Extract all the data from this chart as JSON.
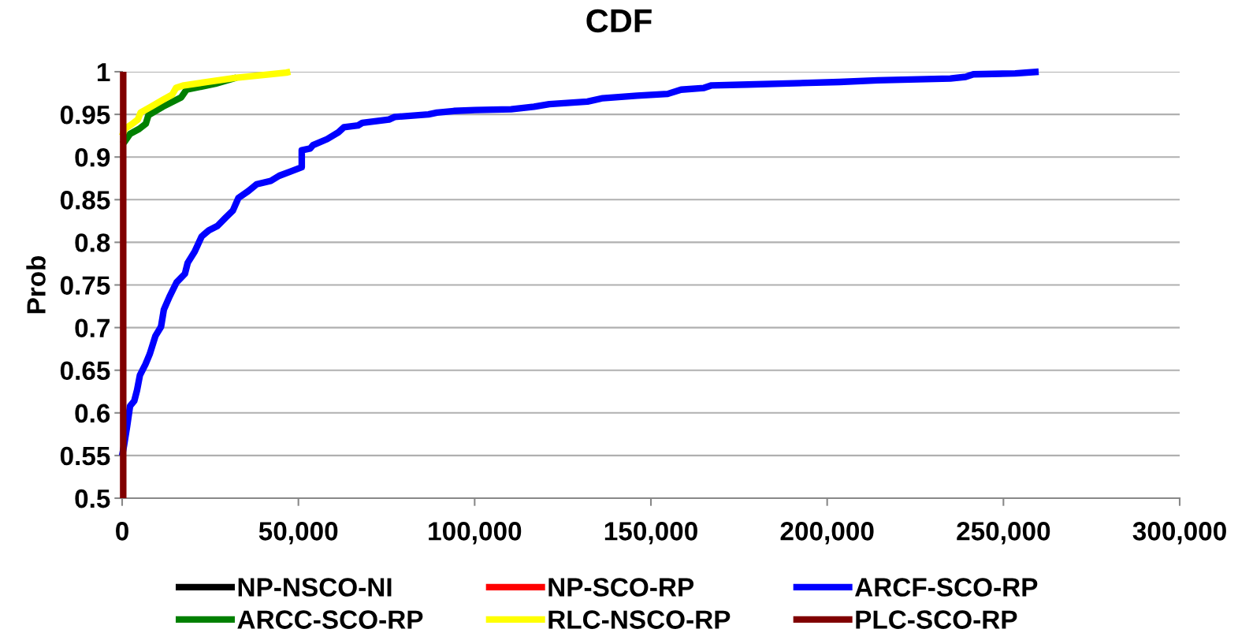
{
  "chart_data": {
    "type": "line",
    "title": "CDF",
    "ylabel": "Prob",
    "xlim": [
      0,
      300000
    ],
    "ylim": [
      0.5,
      1
    ],
    "xticks": [
      0,
      {
        "value": 50000,
        "label": "50,000"
      },
      {
        "value": 100000,
        "label": "100,000"
      },
      {
        "value": 150000,
        "label": "150,000"
      },
      {
        "value": 200000,
        "label": "200,000"
      },
      {
        "value": 250000,
        "label": "250,000"
      },
      {
        "value": 300000,
        "label": "300,000"
      }
    ],
    "yticks": [
      0.5,
      0.55,
      0.6,
      0.65,
      0.7,
      0.75,
      0.8,
      0.85,
      0.9,
      0.95,
      1
    ],
    "grid": "y",
    "legend": "bottom",
    "marker": "none",
    "line_style": "solid",
    "series": [
      {
        "name": "NP-NSCO-NI",
        "color": "#000000"
      },
      {
        "name": "NP-SCO-RP",
        "color": "#ff0000"
      },
      {
        "name": "ARCF-SCO-RP",
        "color": "#0000ff",
        "x": [
          0,
          500,
          1400,
          2240,
          3440,
          4250,
          5030,
          6620,
          7830,
          9420,
          11030,
          11830,
          13410,
          15430,
          17800,
          18600,
          20570,
          22580,
          24590,
          26990,
          29380,
          31390,
          32980,
          35770,
          38160,
          42160,
          44550,
          47750,
          50950,
          50950,
          53340,
          54140,
          58140,
          61340,
          62930,
          66930,
          68120,
          75720,
          77310,
          86900,
          89290,
          94080,
          100000,
          110330,
          116840,
          121170,
          131990,
          136330,
          146080,
          154750,
          158550,
          165050,
          167220,
          177500,
          203530,
          214350,
          234940,
          239280,
          241450,
          253370,
          260000
        ],
        "values": [
          0.55,
          0.561,
          0.584,
          0.608,
          0.614,
          0.627,
          0.644,
          0.657,
          0.669,
          0.69,
          0.701,
          0.721,
          0.736,
          0.753,
          0.763,
          0.776,
          0.789,
          0.807,
          0.814,
          0.819,
          0.829,
          0.837,
          0.852,
          0.86,
          0.868,
          0.872,
          0.878,
          0.883,
          0.888,
          0.908,
          0.91,
          0.914,
          0.921,
          0.929,
          0.935,
          0.937,
          0.94,
          0.944,
          0.947,
          0.95,
          0.952,
          0.954,
          0.955,
          0.956,
          0.959,
          0.962,
          0.965,
          0.969,
          0.972,
          0.974,
          0.979,
          0.981,
          0.984,
          0.985,
          0.988,
          0.99,
          0.992,
          0.994,
          0.997,
          0.998,
          1.0
        ]
      },
      {
        "name": "ARCC-SCO-RP",
        "color": "#008000",
        "x": [
          0,
          740,
          2240,
          4840,
          6710,
          7450,
          11550,
          16770,
          18270,
          26450,
          32420
        ],
        "values": [
          0.915,
          0.918,
          0.927,
          0.933,
          0.939,
          0.949,
          0.959,
          0.97,
          0.979,
          0.986,
          0.993
        ]
      },
      {
        "name": "RLC-NSCO-RP",
        "color": "#ffff00",
        "x": [
          0,
          740,
          2610,
          4470,
          5220,
          8200,
          11550,
          14160,
          15280,
          17510,
          24220,
          32420,
          46580,
          47700
        ],
        "values": [
          0.925,
          0.933,
          0.938,
          0.944,
          0.952,
          0.959,
          0.967,
          0.973,
          0.981,
          0.984,
          0.988,
          0.993,
          0.999,
          1.0
        ]
      },
      {
        "name": "PLC-SCO-RP",
        "color": "#800000",
        "x": [
          300,
          300,
          300
        ],
        "values": [
          0.5,
          0.75,
          1.0
        ]
      }
    ]
  }
}
